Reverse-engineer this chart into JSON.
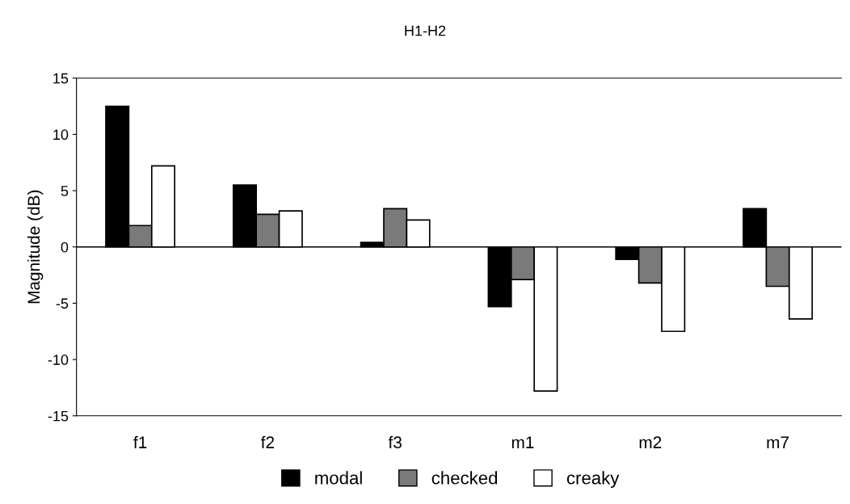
{
  "chart_data": {
    "type": "bar",
    "title": "H1-H2",
    "ylabel": "Magnitude (dB)",
    "categories": [
      "f1",
      "f2",
      "f3",
      "m1",
      "m2",
      "m7"
    ],
    "series": [
      {
        "name": "modal",
        "color": "#000000",
        "values": [
          12.5,
          5.5,
          0.4,
          -5.3,
          -1.1,
          3.4
        ]
      },
      {
        "name": "checked",
        "color": "#7a7a7a",
        "values": [
          1.9,
          2.9,
          3.4,
          -2.9,
          -3.2,
          -3.5
        ]
      },
      {
        "name": "creaky",
        "color": "#ffffff",
        "values": [
          7.2,
          3.2,
          2.4,
          -12.8,
          -7.5,
          -6.4
        ]
      }
    ],
    "ylim": [
      -15,
      15
    ],
    "yticks": [
      -15,
      -10,
      -5,
      0,
      5,
      10,
      15
    ],
    "grid": false,
    "legend": "bottom",
    "ref_lines": [
      {
        "axis": "y",
        "value": 0,
        "color": "#000000"
      }
    ]
  }
}
